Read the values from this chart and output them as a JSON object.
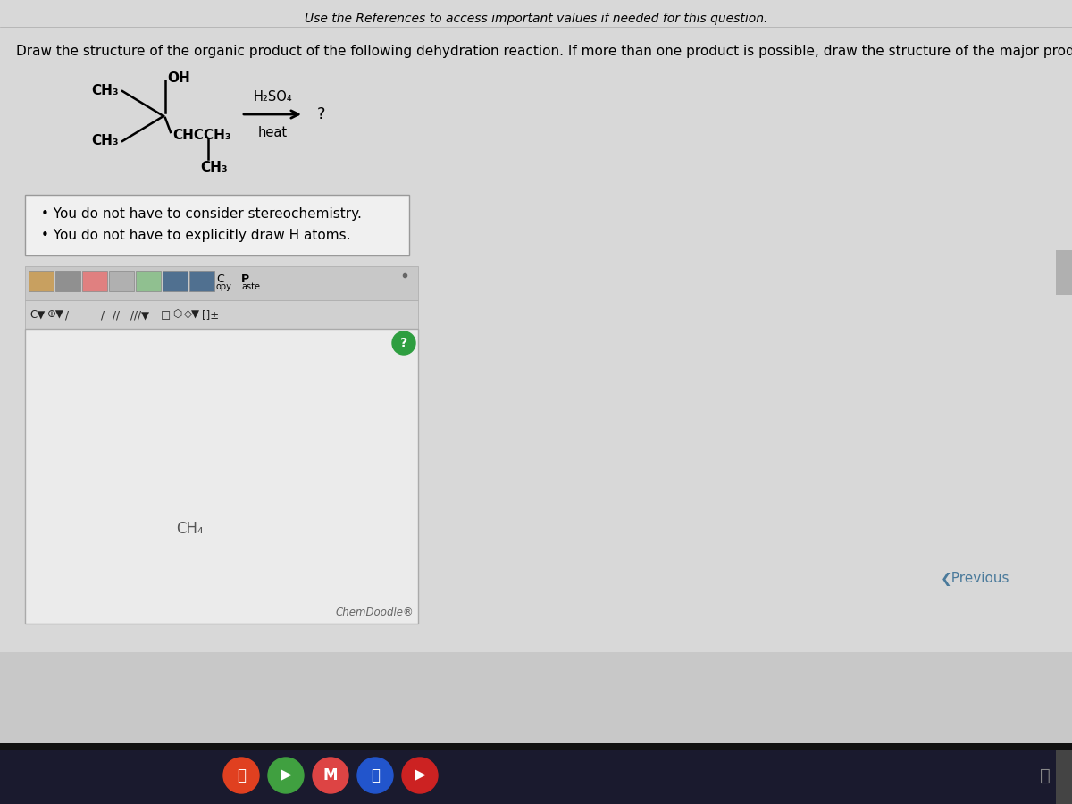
{
  "title_text": "Use the References to access important values if needed for this question.",
  "question_text": "Draw the structure of the organic product of the following dehydration reaction. If more than one product is possible, draw the structure of the major product.",
  "bg_color": "#c8c8c8",
  "white_area_bg": "#e0e0e0",
  "info_box_bg": "#f0f0f0",
  "canvas_bg": "#e8e8e8",
  "toolbar_bg": "#d0d0d0",
  "bullet1": "You do not have to consider stereochemistry.",
  "bullet2": "You do not have to explicitly draw H atoms.",
  "chemdoodle_label": "ChemDoodle®",
  "ch4_label": "CH₄",
  "previous_label": "❮Previous",
  "question_label": "?",
  "reagent1": "H₂SO₄",
  "reagent2": "heat",
  "taskbar_color": "#1a1a2e",
  "previous_color": "#4a7a9b",
  "title_fontsize": 10,
  "question_fontsize": 11,
  "bullet_fontsize": 11
}
